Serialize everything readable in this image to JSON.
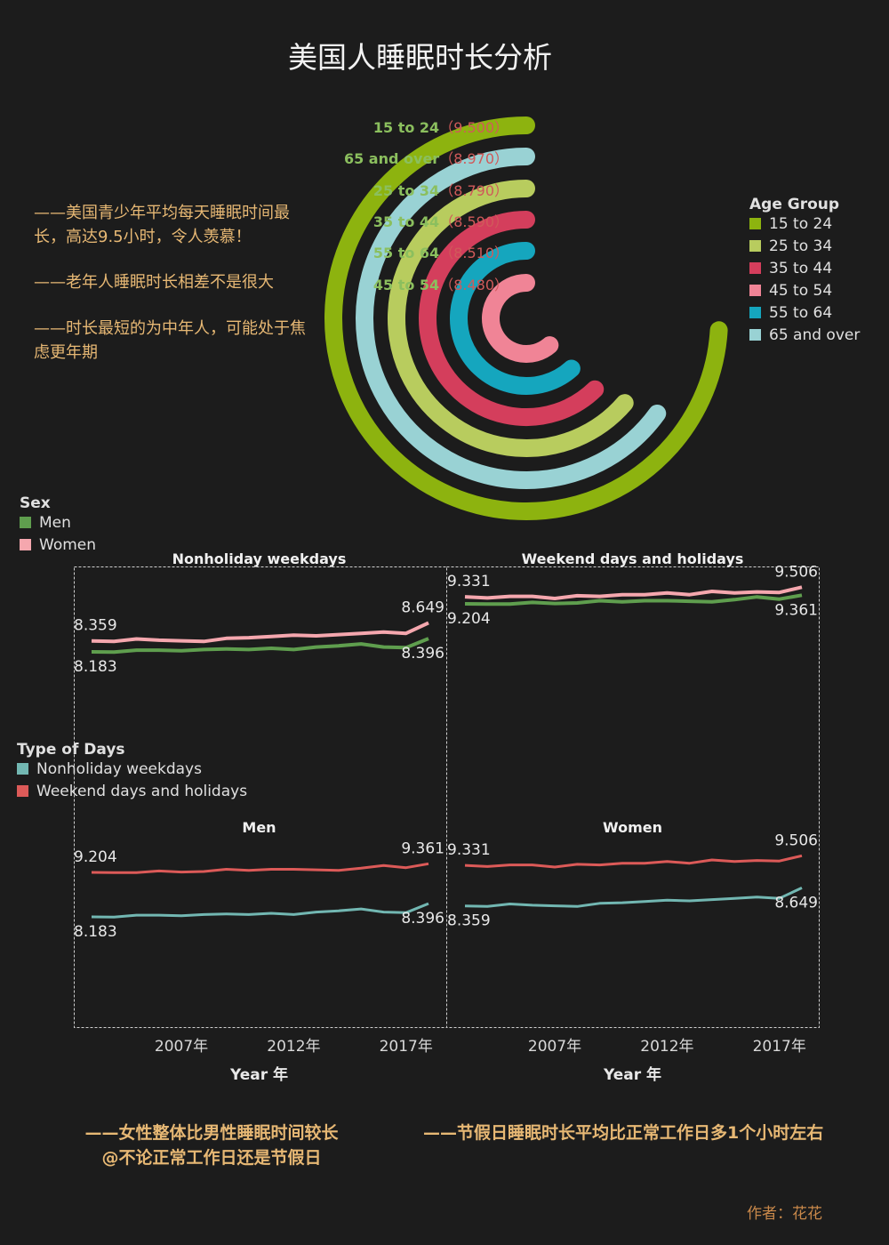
{
  "title": "美国人睡眠时长分析",
  "notes": [
    "——美国青少年平均每天睡眠时间最长，高达9.5小时，令人羡慕！",
    "——老年人睡眠时长相差不是很大",
    "——时长最短的为中年人，可能处于焦虑更年期"
  ],
  "bottom_notes": {
    "left_line1": "——女性整体比男性睡眠时间较长",
    "left_line2": "@不论正常工作日还是节假日",
    "right": "——节假日睡眠时长平均比正常工作日多1个小时左右"
  },
  "author": "作者：花花",
  "legends": {
    "age": {
      "title": "Age Group",
      "items": [
        {
          "label": "15 to 24",
          "color": "#8db30f"
        },
        {
          "label": "25 to 34",
          "color": "#b8cc5e"
        },
        {
          "label": "35 to 44",
          "color": "#d43e5c"
        },
        {
          "label": "45 to 54",
          "color": "#f08496"
        },
        {
          "label": "55 to 64",
          "color": "#15a6be"
        },
        {
          "label": "65 and over",
          "color": "#99d2d4"
        }
      ]
    },
    "sex": {
      "title": "Sex",
      "items": [
        {
          "label": "Men",
          "color": "#5f9e4e"
        },
        {
          "label": "Women",
          "color": "#f5a7ae"
        }
      ]
    },
    "days": {
      "title": "Type of Days",
      "items": [
        {
          "label": "Nonholiday weekdays",
          "color": "#72b7b2"
        },
        {
          "label": "Weekend days and holidays",
          "color": "#dc5a58"
        }
      ]
    }
  },
  "chart_data": [
    {
      "type": "radial-bar",
      "items": [
        {
          "label": "15 to 24",
          "value": 9.5,
          "value_text": "（9.500）",
          "color": "#8db30f"
        },
        {
          "label": "65 and over",
          "value": 8.97,
          "value_text": "（8.970）",
          "color": "#99d2d4"
        },
        {
          "label": "25 to 34",
          "value": 8.79,
          "value_text": "（8.790）",
          "color": "#b8cc5e"
        },
        {
          "label": "35 to 44",
          "value": 8.59,
          "value_text": "（8.590）",
          "color": "#d43e5c"
        },
        {
          "label": "55 to 64",
          "value": 8.51,
          "value_text": "（8.510）",
          "color": "#15a6be"
        },
        {
          "label": "45 to 54",
          "value": 8.48,
          "value_text": "（8.480）",
          "color": "#f08496"
        }
      ]
    },
    {
      "type": "line",
      "x": [
        2003,
        2004,
        2005,
        2006,
        2007,
        2008,
        2009,
        2010,
        2011,
        2012,
        2013,
        2014,
        2015,
        2016,
        2017,
        2018
      ],
      "x_ticks": [
        "2007年",
        "2012年",
        "2017年"
      ],
      "x_tick_values": [
        2007,
        2012,
        2017
      ],
      "xlabel": "Year 年",
      "panels_top": [
        {
          "title": "Nonholiday weekdays",
          "series": [
            {
              "name": "Women",
              "color": "#f5a7ae",
              "values": [
                8.359,
                8.35,
                8.39,
                8.37,
                8.36,
                8.35,
                8.4,
                8.41,
                8.43,
                8.45,
                8.44,
                8.46,
                8.48,
                8.5,
                8.48,
                8.649
              ],
              "start_label": "8.359",
              "end_label": "8.649"
            },
            {
              "name": "Men",
              "color": "#5f9e4e",
              "values": [
                8.183,
                8.18,
                8.21,
                8.21,
                8.2,
                8.22,
                8.23,
                8.22,
                8.24,
                8.22,
                8.26,
                8.28,
                8.31,
                8.26,
                8.25,
                8.396
              ],
              "start_label": "8.183",
              "end_label": "8.396"
            }
          ]
        },
        {
          "title": "Weekend days and holidays",
          "series": [
            {
              "name": "Women",
              "color": "#f5a7ae",
              "values": [
                9.331,
                9.31,
                9.34,
                9.34,
                9.3,
                9.35,
                9.34,
                9.37,
                9.37,
                9.4,
                9.37,
                9.43,
                9.4,
                9.42,
                9.41,
                9.506
              ],
              "start_label": "9.331",
              "end_label": "9.506"
            },
            {
              "name": "Men",
              "color": "#5f9e4e",
              "values": [
                9.204,
                9.2,
                9.2,
                9.23,
                9.21,
                9.22,
                9.26,
                9.24,
                9.26,
                9.26,
                9.25,
                9.24,
                9.28,
                9.33,
                9.29,
                9.361
              ],
              "start_label": "9.204",
              "end_label": "9.361"
            }
          ]
        }
      ],
      "panels_bottom": [
        {
          "title": "Men",
          "series": [
            {
              "name": "Weekend days and holidays",
              "color": "#dc5a58",
              "values": [
                9.204,
                9.2,
                9.2,
                9.23,
                9.21,
                9.22,
                9.26,
                9.24,
                9.26,
                9.26,
                9.25,
                9.24,
                9.28,
                9.33,
                9.29,
                9.361
              ],
              "start_label": "9.204",
              "end_label": "9.361"
            },
            {
              "name": "Nonholiday weekdays",
              "color": "#72b7b2",
              "values": [
                8.183,
                8.18,
                8.21,
                8.21,
                8.2,
                8.22,
                8.23,
                8.22,
                8.24,
                8.22,
                8.26,
                8.28,
                8.31,
                8.26,
                8.25,
                8.396
              ],
              "start_label": "8.183",
              "end_label": "8.396"
            }
          ]
        },
        {
          "title": "Women",
          "series": [
            {
              "name": "Weekend days and holidays",
              "color": "#dc5a58",
              "values": [
                9.331,
                9.31,
                9.34,
                9.34,
                9.3,
                9.35,
                9.34,
                9.37,
                9.37,
                9.4,
                9.37,
                9.43,
                9.4,
                9.42,
                9.41,
                9.506
              ],
              "start_label": "9.331",
              "end_label": "9.506"
            },
            {
              "name": "Nonholiday weekdays",
              "color": "#72b7b2",
              "values": [
                8.359,
                8.35,
                8.39,
                8.37,
                8.36,
                8.35,
                8.4,
                8.41,
                8.43,
                8.45,
                8.44,
                8.46,
                8.48,
                8.5,
                8.48,
                8.649
              ],
              "start_label": "8.359",
              "end_label": "8.649"
            }
          ]
        }
      ]
    }
  ]
}
